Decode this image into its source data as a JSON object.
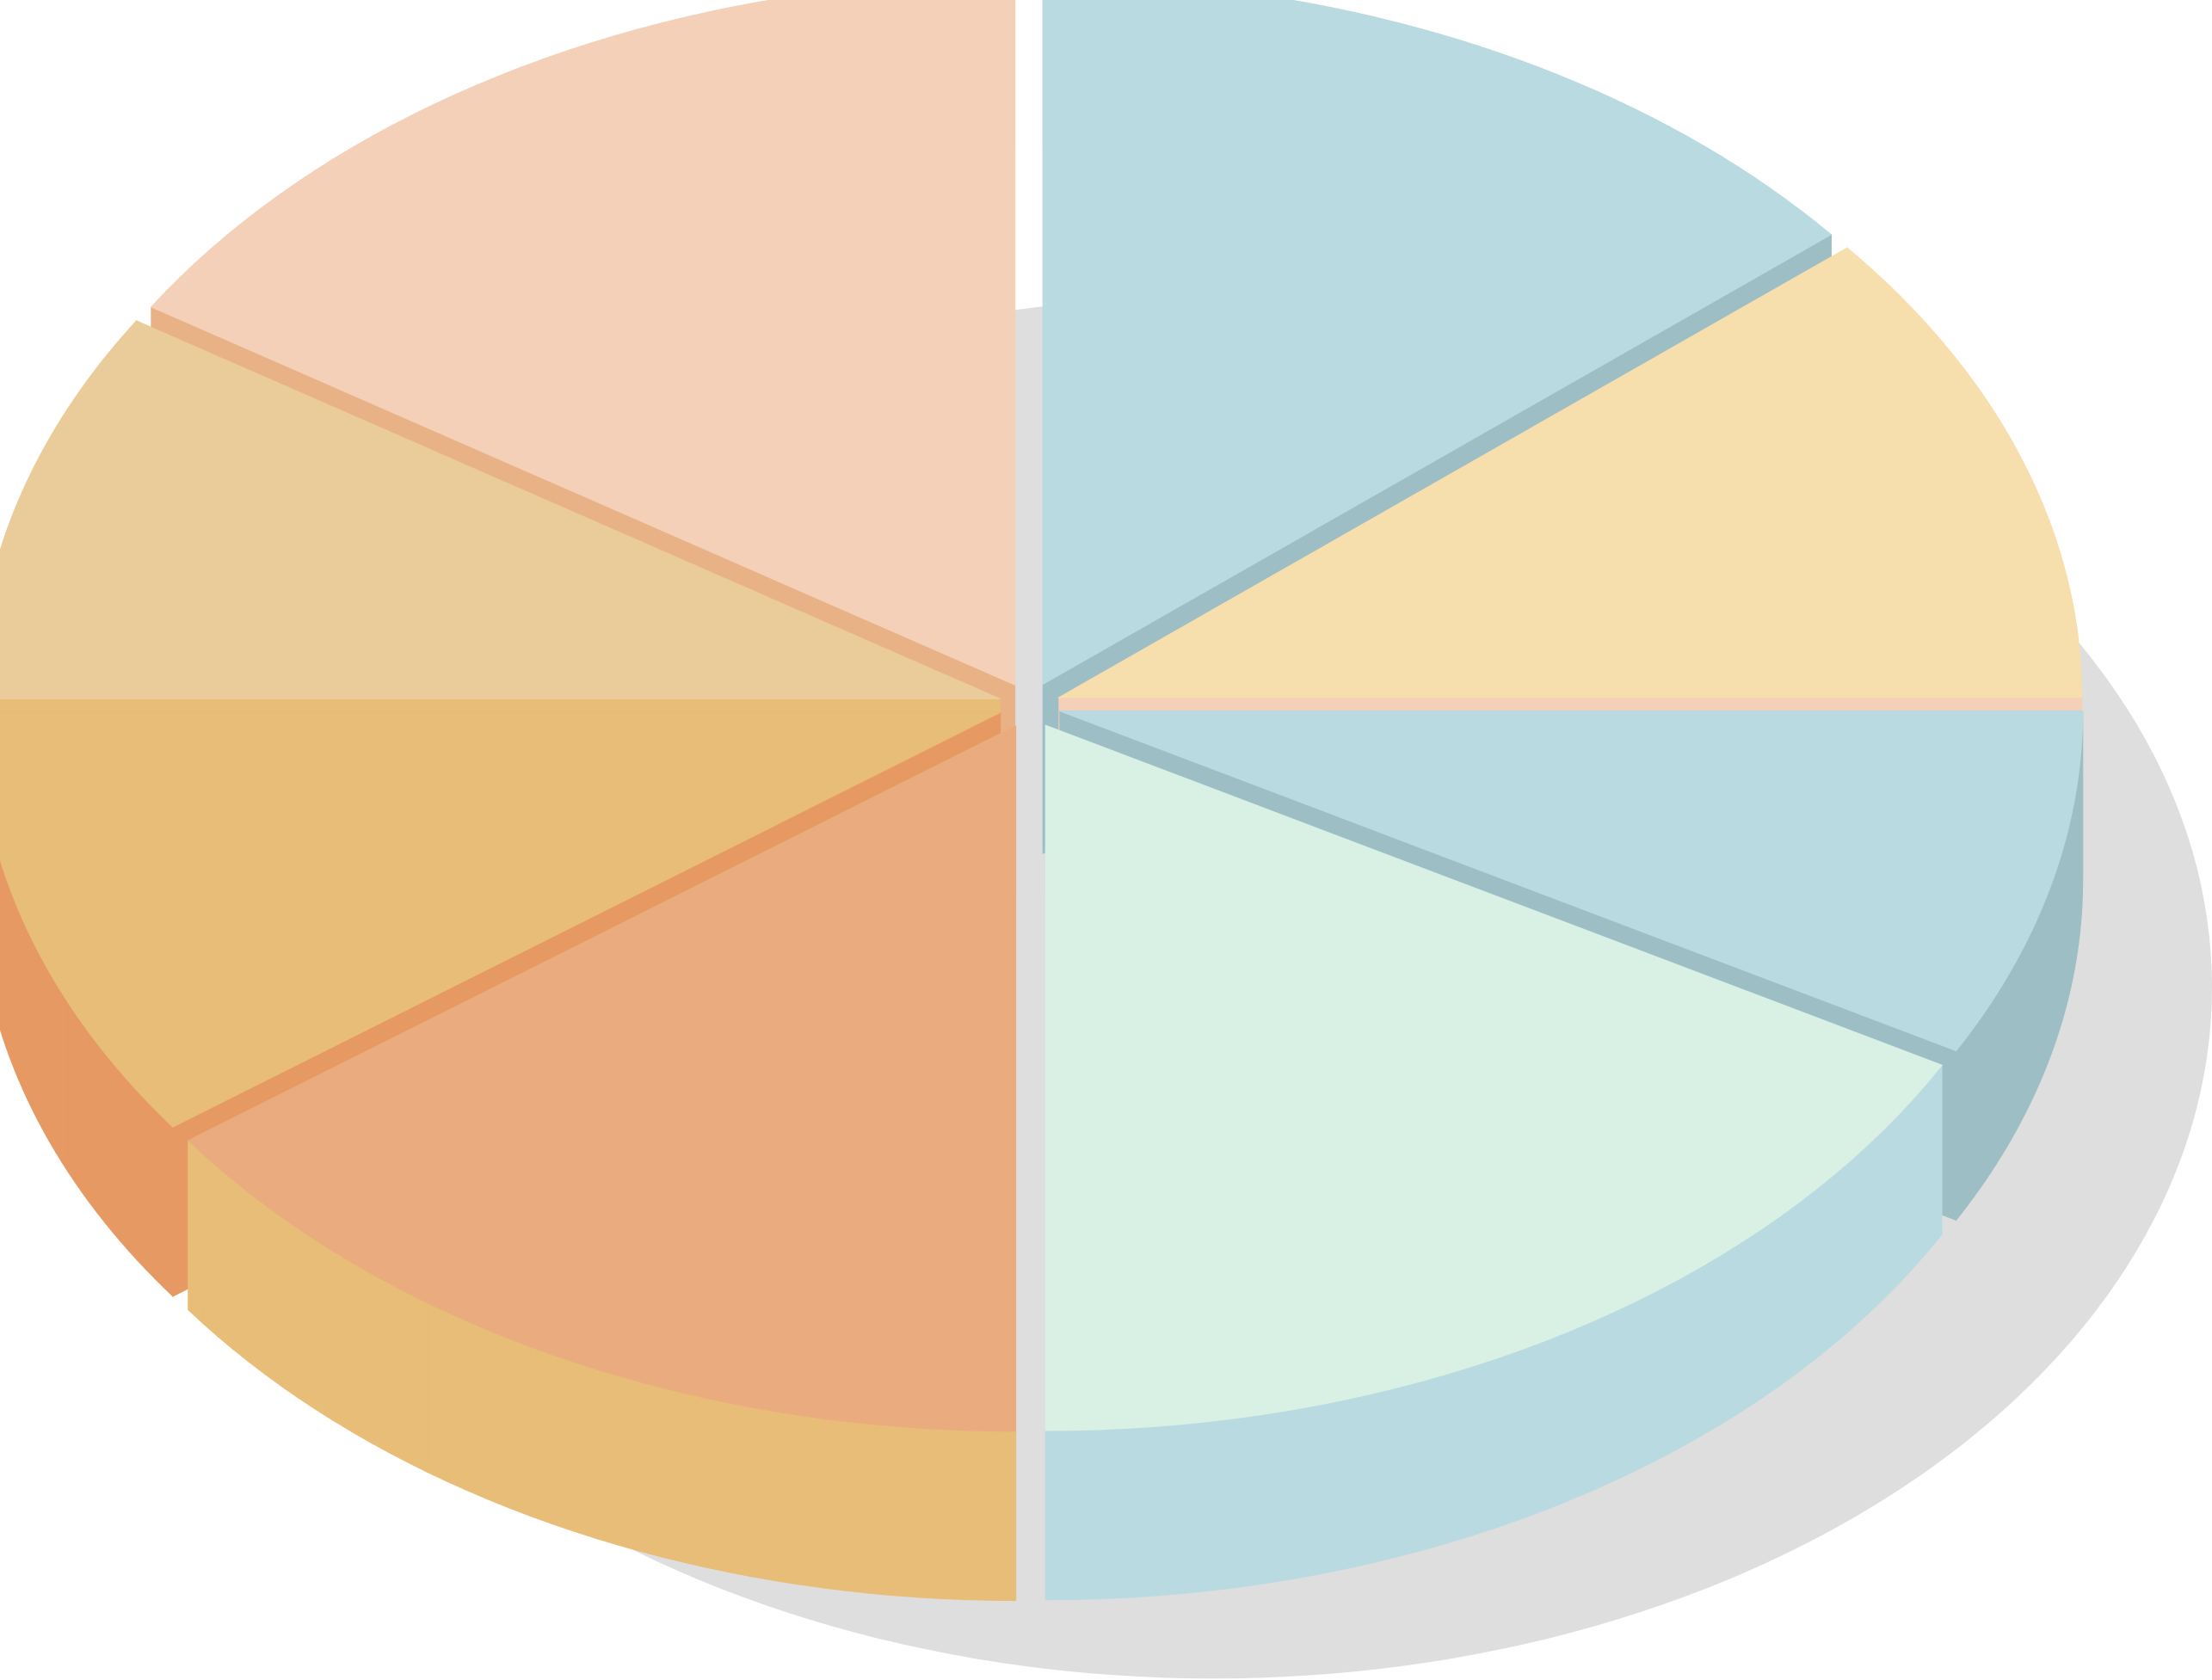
{
  "chart_data": {
    "type": "pie",
    "values": [
      14,
      11,
      8,
      17,
      15,
      10,
      9,
      16
    ],
    "colors": [
      "#b9dae0",
      "#f7dead",
      "#b9dae0",
      "#d9f1e5",
      "#eaac7f",
      "#e8bd78",
      "#eacb9a",
      "#f4d0b8"
    ],
    "side_colors": [
      "#9dbec4",
      "#f4d0b8",
      "#9dbec4",
      "#b9dae0",
      "#e8bd78",
      "#e69962",
      "#e8bd78",
      "#e9b286"
    ]
  }
}
